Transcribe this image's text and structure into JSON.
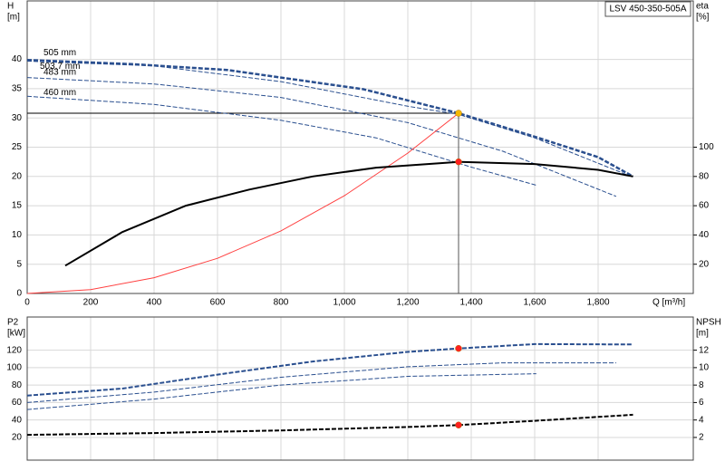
{
  "chart_data": [
    {
      "type": "line",
      "title": "LSV 450-350-505A",
      "ylabel": "H",
      "yunit": "[m]",
      "y2label": "eta",
      "y2unit": "[%]",
      "xlabel": "Q [m³/h]",
      "xlim": [
        0,
        2100
      ],
      "ylim": [
        0,
        50
      ],
      "y2lim": [
        0,
        200
      ],
      "xticks": [
        0,
        200,
        400,
        600,
        800,
        {
          "value": 1000,
          "label": "1,000"
        },
        {
          "value": 1200,
          "label": "1,200"
        },
        {
          "value": 1400,
          "label": "1,400"
        },
        {
          "value": 1600,
          "label": "1,600"
        },
        {
          "value": 1800,
          "label": "1,800"
        }
      ],
      "yticks": [
        0,
        5,
        10,
        15,
        20,
        25,
        30,
        35,
        40
      ],
      "y2ticks": [
        20,
        40,
        60,
        80,
        100
      ],
      "grid": true,
      "series": [
        {
          "name": "505 mm",
          "color": "#2a4f8f",
          "style": "dashed",
          "width": 2.5,
          "x": [
            0,
            330,
            630,
            1060,
            1360,
            1600,
            1800,
            1910
          ],
          "values": [
            39.9,
            39.2,
            38.2,
            34.9,
            30.8,
            26.8,
            23.3,
            20
          ]
        },
        {
          "name": "503,7 mm",
          "color": "#2a4f8f",
          "style": "dashed",
          "width": 1,
          "x": [
            0,
            400,
            800,
            1200,
            1360,
            1600,
            1900
          ],
          "values": [
            39.7,
            38.9,
            36.2,
            32.0,
            30.6,
            26.6,
            20.1
          ]
        },
        {
          "name": "483 mm",
          "color": "#2a4f8f",
          "style": "dashed",
          "width": 1,
          "x": [
            0,
            400,
            800,
            1200,
            1500,
            1857
          ],
          "values": [
            36.9,
            35.8,
            33.5,
            29.2,
            24.3,
            16.6
          ]
        },
        {
          "name": "460 mm",
          "color": "#2a4f8f",
          "style": "dashed",
          "width": 1,
          "x": [
            0,
            400,
            800,
            1100,
            1400,
            1605
          ],
          "values": [
            33.7,
            32.3,
            29.6,
            26.6,
            21.6,
            18.5
          ]
        },
        {
          "color": "#ff4040",
          "style": "solid",
          "width": 1,
          "x": [
            0,
            200,
            400,
            600,
            800,
            1000,
            1200,
            1360
          ],
          "values": [
            0,
            0.67,
            2.7,
            6.0,
            10.7,
            16.7,
            24.0,
            30.8
          ]
        },
        {
          "color": "#000000",
          "style": "solid",
          "width": 2,
          "axis": "y2",
          "x": [
            120,
            300,
            500,
            700,
            900,
            1100,
            1360,
            1600,
            1800,
            1910
          ],
          "values": [
            19,
            42,
            60,
            71,
            80,
            86,
            90,
            88.5,
            84.5,
            80
          ]
        }
      ],
      "markers": [
        {
          "x": 1360,
          "y": 30.8,
          "color": "#f5b800",
          "duty_lines": true
        },
        {
          "x": 1360,
          "y": 90,
          "axis": "y2",
          "color": "#ff2020"
        }
      ]
    },
    {
      "type": "line",
      "ylabel": "P2",
      "yunit": "[kW]",
      "y2label": "NPSH",
      "y2unit": "[m]",
      "xlim": [
        0,
        2100
      ],
      "ylim": [
        -6,
        158
      ],
      "y2lim": [
        -0.6,
        15.8
      ],
      "xticks": [
        0,
        200,
        400,
        600,
        800,
        1000,
        1200,
        1400,
        1600,
        1800
      ],
      "yticks": [
        20,
        40,
        60,
        80,
        100,
        120
      ],
      "y2ticks": [
        2,
        4,
        6,
        8,
        10,
        12
      ],
      "grid": true,
      "series": [
        {
          "color": "#2a4f8f",
          "style": "dashed",
          "width": 2,
          "x": [
            0,
            300,
            600,
            900,
            1200,
            1360,
            1600,
            1910
          ],
          "values": [
            68,
            76,
            92,
            107,
            118,
            122,
            127,
            126.5
          ]
        },
        {
          "color": "#2a4f8f",
          "style": "dashed",
          "width": 1,
          "x": [
            0,
            400,
            800,
            1200,
            1500,
            1857
          ],
          "values": [
            60,
            72,
            89,
            101,
            105.5,
            105.5
          ]
        },
        {
          "color": "#2a4f8f",
          "style": "dashed",
          "width": 1,
          "x": [
            0,
            400,
            800,
            1200,
            1605
          ],
          "values": [
            52,
            64,
            80,
            90,
            93
          ]
        },
        {
          "color": "#000000",
          "style": "dashed",
          "width": 2,
          "axis": "y2",
          "x": [
            0,
            400,
            800,
            1200,
            1360,
            1600,
            1910
          ],
          "values": [
            2.3,
            2.5,
            2.8,
            3.2,
            3.42,
            3.9,
            4.6
          ]
        }
      ],
      "markers": [
        {
          "x": 1360,
          "y": 122,
          "color": "#ff2020"
        },
        {
          "x": 1360,
          "y": 3.42,
          "axis": "y2",
          "color": "#ff2020"
        }
      ]
    }
  ]
}
